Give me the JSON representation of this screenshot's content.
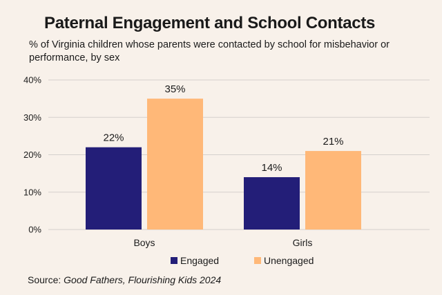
{
  "header": {
    "title": "Paternal Engagement and School Contacts",
    "subtitle": "% of Virginia children whose parents were contacted by school for misbehavior or performance, by sex"
  },
  "source": {
    "prefix": "Source: ",
    "title": "Good Fathers, Flourishing Kids 2024"
  },
  "colors": {
    "engaged": "#231e78",
    "unengaged": "#ffb878",
    "grid": "#d4d0cc",
    "background": "#f8f1ea"
  },
  "chart_data": {
    "type": "bar",
    "title": "Paternal Engagement and School Contacts",
    "subtitle": "% of Virginia children whose parents were contacted by school for misbehavior or performance, by sex",
    "categories": [
      "Boys",
      "Girls"
    ],
    "series": [
      {
        "name": "Engaged",
        "values": [
          22,
          14
        ],
        "labels": [
          "22%",
          "14%"
        ]
      },
      {
        "name": "Unengaged",
        "values": [
          35,
          21
        ],
        "labels": [
          "35%",
          "21%"
        ]
      }
    ],
    "yticks": [
      "0%",
      "10%",
      "20%",
      "30%",
      "40%"
    ],
    "ytick_values": [
      0,
      10,
      20,
      30,
      40
    ],
    "ylim": [
      0,
      40
    ],
    "xlabel": "",
    "ylabel": "",
    "grid": true,
    "legend_position": "bottom-center"
  }
}
